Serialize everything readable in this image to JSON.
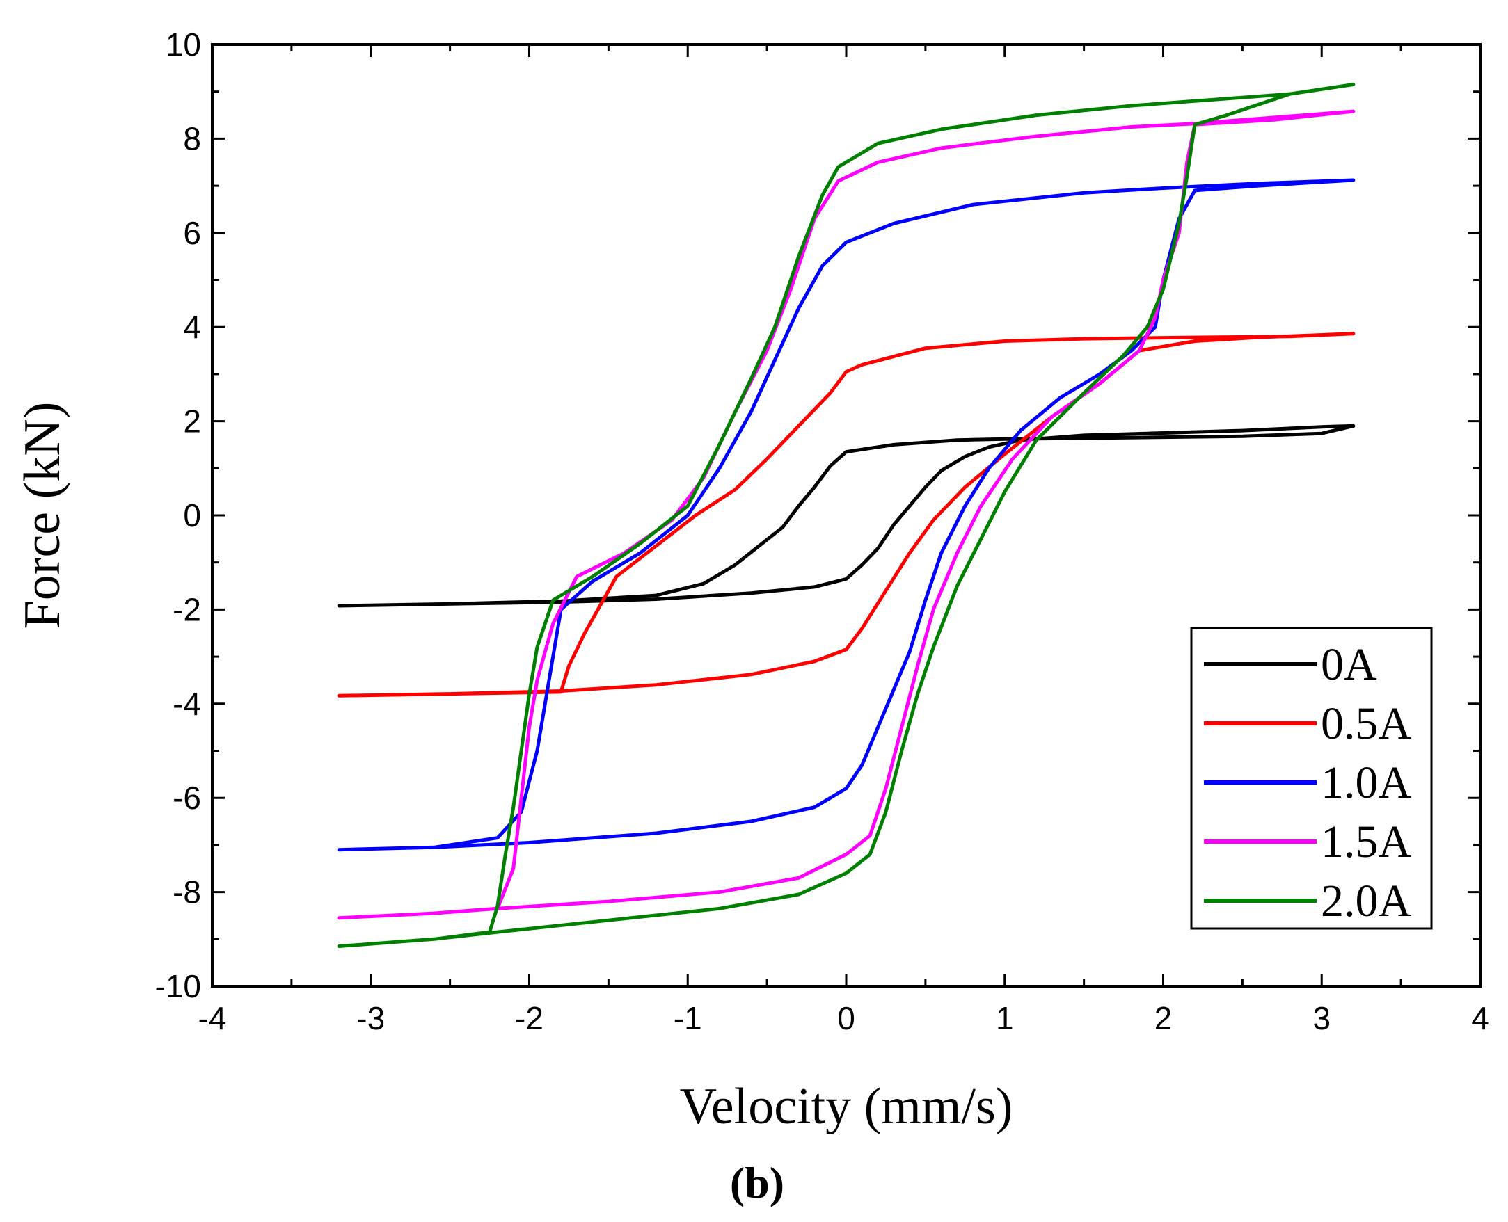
{
  "chart_data": {
    "type": "line",
    "title": "",
    "caption": "(b)",
    "xlabel": "Velocity (mm/s)",
    "ylabel": "Force (kN)",
    "xlim": [
      -4,
      4
    ],
    "ylim": [
      -10,
      10
    ],
    "xticks": [
      -4,
      -3,
      -2,
      -1,
      0,
      1,
      2,
      3,
      4
    ],
    "yticks": [
      -10,
      -8,
      -6,
      -4,
      -2,
      0,
      2,
      4,
      6,
      8,
      10
    ],
    "xtick_labels": [
      "-4",
      "-3",
      "-2",
      "-1",
      "0",
      "1",
      "2",
      "3",
      "4"
    ],
    "ytick_labels": [
      "-10",
      "-8",
      "-6",
      "-4",
      "-2",
      "0",
      "2",
      "4",
      "6",
      "8",
      "10"
    ],
    "grid": false,
    "legend_position": "bottom-right",
    "series": [
      {
        "name": "0A",
        "color": "#000000",
        "points": [
          [
            -3.2,
            -1.92
          ],
          [
            -2.5,
            -1.88
          ],
          [
            -1.8,
            -1.84
          ],
          [
            -1.2,
            -1.78
          ],
          [
            -0.6,
            -1.65
          ],
          [
            -0.2,
            -1.52
          ],
          [
            0.0,
            -1.35
          ],
          [
            0.1,
            -1.05
          ],
          [
            0.2,
            -0.7
          ],
          [
            0.3,
            -0.2
          ],
          [
            0.4,
            0.2
          ],
          [
            0.5,
            0.6
          ],
          [
            0.6,
            0.95
          ],
          [
            0.75,
            1.25
          ],
          [
            0.9,
            1.45
          ],
          [
            1.1,
            1.6
          ],
          [
            1.5,
            1.7
          ],
          [
            2.0,
            1.75
          ],
          [
            2.5,
            1.8
          ],
          [
            3.0,
            1.88
          ],
          [
            3.2,
            1.9
          ],
          [
            3.0,
            1.74
          ],
          [
            2.5,
            1.68
          ],
          [
            2.0,
            1.66
          ],
          [
            1.5,
            1.64
          ],
          [
            1.0,
            1.62
          ],
          [
            0.7,
            1.6
          ],
          [
            0.3,
            1.5
          ],
          [
            0.0,
            1.35
          ],
          [
            -0.1,
            1.05
          ],
          [
            -0.2,
            0.6
          ],
          [
            -0.3,
            0.2
          ],
          [
            -0.4,
            -0.25
          ],
          [
            -0.55,
            -0.65
          ],
          [
            -0.7,
            -1.05
          ],
          [
            -0.9,
            -1.45
          ],
          [
            -1.2,
            -1.7
          ],
          [
            -1.8,
            -1.82
          ],
          [
            -2.5,
            -1.88
          ],
          [
            -3.2,
            -1.92
          ]
        ]
      },
      {
        "name": "0.5A",
        "color": "#ff0000",
        "points": [
          [
            -3.2,
            -3.83
          ],
          [
            -2.5,
            -3.79
          ],
          [
            -1.8,
            -3.73
          ],
          [
            -1.2,
            -3.6
          ],
          [
            -0.6,
            -3.38
          ],
          [
            -0.2,
            -3.1
          ],
          [
            0.0,
            -2.85
          ],
          [
            0.1,
            -2.4
          ],
          [
            0.25,
            -1.6
          ],
          [
            0.4,
            -0.8
          ],
          [
            0.55,
            -0.1
          ],
          [
            0.75,
            0.6
          ],
          [
            1.0,
            1.3
          ],
          [
            1.3,
            2.1
          ],
          [
            1.6,
            2.8
          ],
          [
            1.85,
            3.5
          ],
          [
            2.2,
            3.7
          ],
          [
            2.6,
            3.78
          ],
          [
            3.2,
            3.86
          ],
          [
            2.8,
            3.8
          ],
          [
            2.2,
            3.78
          ],
          [
            1.5,
            3.75
          ],
          [
            1.0,
            3.7
          ],
          [
            0.5,
            3.55
          ],
          [
            0.1,
            3.2
          ],
          [
            0.0,
            3.05
          ],
          [
            -0.1,
            2.6
          ],
          [
            -0.3,
            1.9
          ],
          [
            -0.5,
            1.2
          ],
          [
            -0.7,
            0.55
          ],
          [
            -0.95,
            0.0
          ],
          [
            -1.2,
            -0.65
          ],
          [
            -1.45,
            -1.3
          ],
          [
            -1.65,
            -2.5
          ],
          [
            -1.75,
            -3.2
          ],
          [
            -1.8,
            -3.75
          ],
          [
            -2.5,
            -3.79
          ],
          [
            -3.2,
            -3.83
          ]
        ]
      },
      {
        "name": "1.0A",
        "color": "#0000ff",
        "points": [
          [
            -3.2,
            -7.1
          ],
          [
            -2.6,
            -7.05
          ],
          [
            -2.2,
            -6.85
          ],
          [
            -2.05,
            -6.3
          ],
          [
            -1.95,
            -5.0
          ],
          [
            -1.9,
            -4.0
          ],
          [
            -1.85,
            -3.0
          ],
          [
            -1.8,
            -2.0
          ],
          [
            -1.6,
            -1.4
          ],
          [
            -1.3,
            -0.8
          ],
          [
            -1.0,
            0.0
          ],
          [
            -0.8,
            1.0
          ],
          [
            -0.6,
            2.2
          ],
          [
            -0.45,
            3.3
          ],
          [
            -0.3,
            4.4
          ],
          [
            -0.15,
            5.3
          ],
          [
            0.0,
            5.8
          ],
          [
            0.3,
            6.2
          ],
          [
            0.8,
            6.6
          ],
          [
            1.5,
            6.85
          ],
          [
            2.0,
            6.95
          ],
          [
            2.6,
            7.05
          ],
          [
            3.2,
            7.12
          ],
          [
            2.6,
            7.0
          ],
          [
            2.2,
            6.9
          ],
          [
            2.1,
            6.3
          ],
          [
            2.0,
            5.0
          ],
          [
            1.95,
            4.0
          ],
          [
            1.8,
            3.5
          ],
          [
            1.6,
            3.0
          ],
          [
            1.35,
            2.5
          ],
          [
            1.1,
            1.8
          ],
          [
            0.9,
            1.0
          ],
          [
            0.75,
            0.2
          ],
          [
            0.6,
            -0.8
          ],
          [
            0.5,
            -1.8
          ],
          [
            0.4,
            -2.9
          ],
          [
            0.3,
            -3.7
          ],
          [
            0.2,
            -4.5
          ],
          [
            0.1,
            -5.3
          ],
          [
            0.0,
            -5.8
          ],
          [
            -0.2,
            -6.2
          ],
          [
            -0.6,
            -6.5
          ],
          [
            -1.2,
            -6.75
          ],
          [
            -2.0,
            -6.95
          ],
          [
            -2.6,
            -7.05
          ],
          [
            -3.2,
            -7.1
          ]
        ]
      },
      {
        "name": "1.5A",
        "color": "#ff00ff",
        "points": [
          [
            -3.2,
            -8.55
          ],
          [
            -2.6,
            -8.45
          ],
          [
            -2.2,
            -8.35
          ],
          [
            -2.1,
            -7.5
          ],
          [
            -2.05,
            -6.0
          ],
          [
            -2.0,
            -4.5
          ],
          [
            -1.95,
            -3.5
          ],
          [
            -1.85,
            -2.3
          ],
          [
            -1.7,
            -1.3
          ],
          [
            -1.4,
            -0.8
          ],
          [
            -1.1,
            -0.1
          ],
          [
            -0.9,
            0.8
          ],
          [
            -0.7,
            2.2
          ],
          [
            -0.5,
            3.5
          ],
          [
            -0.35,
            4.8
          ],
          [
            -0.2,
            6.3
          ],
          [
            -0.05,
            7.1
          ],
          [
            0.2,
            7.5
          ],
          [
            0.6,
            7.8
          ],
          [
            1.2,
            8.05
          ],
          [
            1.8,
            8.25
          ],
          [
            2.2,
            8.32
          ],
          [
            2.7,
            8.45
          ],
          [
            3.2,
            8.58
          ],
          [
            2.7,
            8.4
          ],
          [
            2.2,
            8.3
          ],
          [
            2.15,
            7.5
          ],
          [
            2.1,
            6.0
          ],
          [
            2.0,
            5.0
          ],
          [
            1.95,
            4.2
          ],
          [
            1.85,
            3.5
          ],
          [
            1.6,
            2.8
          ],
          [
            1.3,
            2.1
          ],
          [
            1.05,
            1.2
          ],
          [
            0.85,
            0.2
          ],
          [
            0.7,
            -0.8
          ],
          [
            0.55,
            -2.0
          ],
          [
            0.45,
            -3.2
          ],
          [
            0.35,
            -4.5
          ],
          [
            0.25,
            -5.8
          ],
          [
            0.15,
            -6.8
          ],
          [
            0.0,
            -7.2
          ],
          [
            -0.3,
            -7.7
          ],
          [
            -0.8,
            -8.0
          ],
          [
            -1.5,
            -8.2
          ],
          [
            -2.2,
            -8.35
          ],
          [
            -2.6,
            -8.45
          ],
          [
            -3.2,
            -8.55
          ]
        ]
      },
      {
        "name": "2.0A",
        "color": "#008000",
        "points": [
          [
            -3.2,
            -9.15
          ],
          [
            -2.6,
            -9.0
          ],
          [
            -2.25,
            -8.85
          ],
          [
            -2.2,
            -8.3
          ],
          [
            -2.15,
            -7.2
          ],
          [
            -2.1,
            -6.2
          ],
          [
            -2.05,
            -5.0
          ],
          [
            -2.0,
            -3.8
          ],
          [
            -1.95,
            -2.8
          ],
          [
            -1.85,
            -1.8
          ],
          [
            -1.6,
            -1.3
          ],
          [
            -1.3,
            -0.6
          ],
          [
            -1.0,
            0.2
          ],
          [
            -0.8,
            1.5
          ],
          [
            -0.6,
            2.9
          ],
          [
            -0.45,
            4.0
          ],
          [
            -0.3,
            5.5
          ],
          [
            -0.15,
            6.8
          ],
          [
            -0.05,
            7.4
          ],
          [
            0.2,
            7.9
          ],
          [
            0.6,
            8.2
          ],
          [
            1.2,
            8.5
          ],
          [
            1.8,
            8.7
          ],
          [
            2.4,
            8.85
          ],
          [
            2.8,
            8.95
          ],
          [
            3.2,
            9.15
          ],
          [
            2.8,
            8.95
          ],
          [
            2.4,
            8.5
          ],
          [
            2.2,
            8.3
          ],
          [
            2.15,
            7.2
          ],
          [
            2.1,
            6.2
          ],
          [
            2.05,
            5.5
          ],
          [
            2.0,
            4.8
          ],
          [
            1.9,
            4.0
          ],
          [
            1.75,
            3.4
          ],
          [
            1.5,
            2.6
          ],
          [
            1.2,
            1.6
          ],
          [
            1.0,
            0.5
          ],
          [
            0.85,
            -0.5
          ],
          [
            0.7,
            -1.5
          ],
          [
            0.55,
            -2.8
          ],
          [
            0.45,
            -3.8
          ],
          [
            0.35,
            -5.0
          ],
          [
            0.25,
            -6.3
          ],
          [
            0.15,
            -7.2
          ],
          [
            0.0,
            -7.6
          ],
          [
            -0.3,
            -8.05
          ],
          [
            -0.8,
            -8.35
          ],
          [
            -1.5,
            -8.6
          ],
          [
            -2.2,
            -8.85
          ],
          [
            -2.6,
            -9.0
          ],
          [
            -3.2,
            -9.15
          ]
        ]
      }
    ]
  }
}
